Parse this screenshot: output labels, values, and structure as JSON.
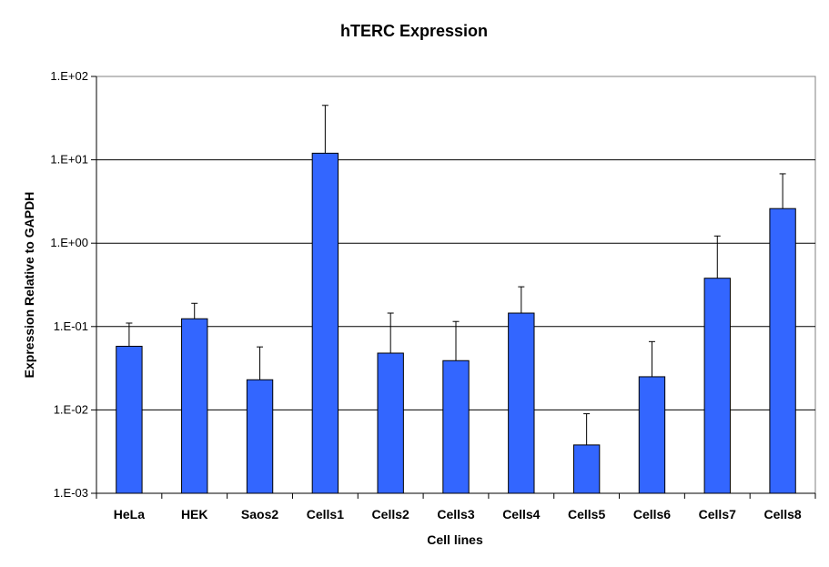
{
  "chart_data": {
    "type": "bar",
    "title": "hTERC Expression",
    "xlabel": "Cell lines",
    "ylabel": "Expression Relative to GAPDH",
    "yscale": "log",
    "ylim": [
      0.001,
      100
    ],
    "yticks": [
      0.001,
      0.01,
      0.1,
      1,
      10,
      100
    ],
    "ytick_labels": [
      "1.E-03",
      "1.E-02",
      "1.E-01",
      "1.E+00",
      "1.E+01",
      "1.E+02"
    ],
    "grid": true,
    "categories": [
      "HeLa",
      "HEK",
      "Saos2",
      "Cells1",
      "Cells2",
      "Cells3",
      "Cells4",
      "Cells5",
      "Cells6",
      "Cells7",
      "Cells8"
    ],
    "values": [
      0.058,
      0.124,
      0.023,
      12.0,
      0.048,
      0.039,
      0.145,
      0.0038,
      0.025,
      0.38,
      2.6
    ],
    "error_upper": [
      0.11,
      0.19,
      0.057,
      45.0,
      0.145,
      0.115,
      0.3,
      0.009,
      0.066,
      1.22,
      6.8
    ],
    "bar_color": "#3366ff",
    "bar_edge_color": "#000000"
  }
}
